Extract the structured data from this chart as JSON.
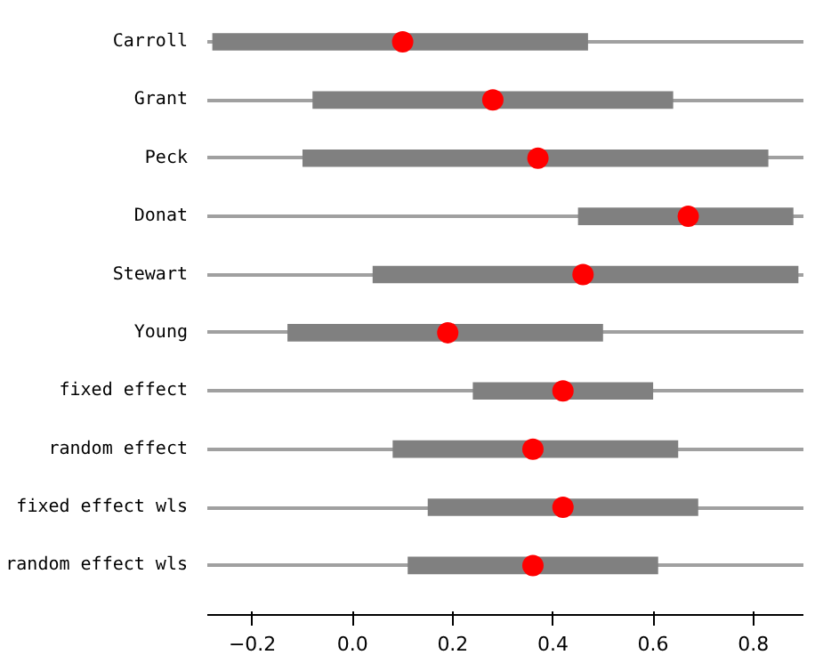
{
  "chart_data": {
    "type": "bar",
    "orientation": "horizontal",
    "categories": [
      "Carroll",
      "Grant",
      "Peck",
      "Donat",
      "Stewart",
      "Young",
      "fixed effect",
      "random effect",
      "fixed effect wls",
      "random effect wls"
    ],
    "series": [
      {
        "color": "#808080",
        "base": [
          -0.28,
          -0.08,
          -0.1,
          0.45,
          0.04,
          -0.13,
          0.24,
          0.08,
          0.15,
          0.11
        ],
        "values": [
          0.75,
          0.72,
          0.93,
          0.43,
          0.85,
          0.63,
          0.36,
          0.57,
          0.54,
          0.5
        ]
      },
      {
        "type": "scatter",
        "color": "#ff0000",
        "marker": "circle",
        "values": [
          0.1,
          0.28,
          0.37,
          0.67,
          0.46,
          0.19,
          0.42,
          0.36,
          0.42,
          0.36
        ]
      }
    ],
    "xlim": [
      -0.29,
      0.9
    ],
    "xticks": [
      {
        "value": -0.2,
        "label": "−0.2"
      },
      {
        "value": 0,
        "label": "0.0"
      },
      {
        "value": 0.2,
        "label": "0.2"
      },
      {
        "value": 0.4,
        "label": "0.4"
      },
      {
        "value": 0.6,
        "label": "0.6"
      },
      {
        "value": 0.8,
        "label": "0.8"
      }
    ],
    "grid": "y"
  }
}
